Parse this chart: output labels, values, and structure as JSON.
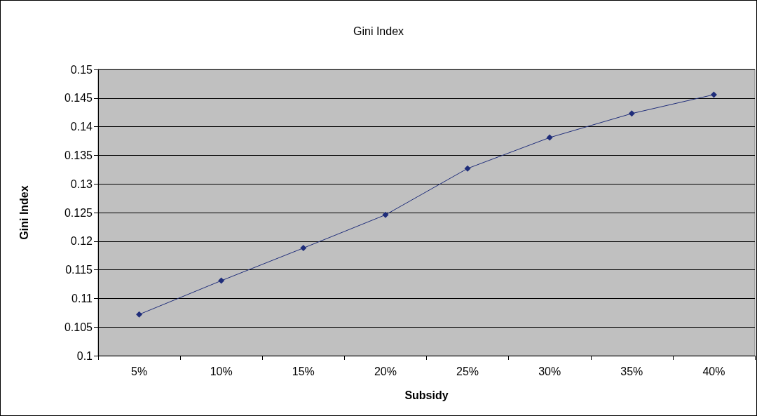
{
  "chart_data": {
    "type": "line",
    "title": "Gini Index",
    "xlabel": "Subsidy",
    "ylabel": "Gini Index",
    "categories": [
      "5%",
      "10%",
      "15%",
      "20%",
      "25%",
      "30%",
      "35%",
      "40%"
    ],
    "series": [
      {
        "color": "#1f2d7a",
        "values": [
          0.1072,
          0.1131,
          0.1188,
          0.1246,
          0.1327,
          0.1381,
          0.1423,
          0.1456
        ]
      }
    ],
    "ylim": [
      0.1,
      0.15
    ],
    "yticks": [
      0.1,
      0.105,
      0.11,
      0.115,
      0.12,
      0.125,
      0.13,
      0.135,
      0.14,
      0.145,
      0.15
    ],
    "grid": "y",
    "marker": "diamond",
    "line_style": "solid"
  }
}
